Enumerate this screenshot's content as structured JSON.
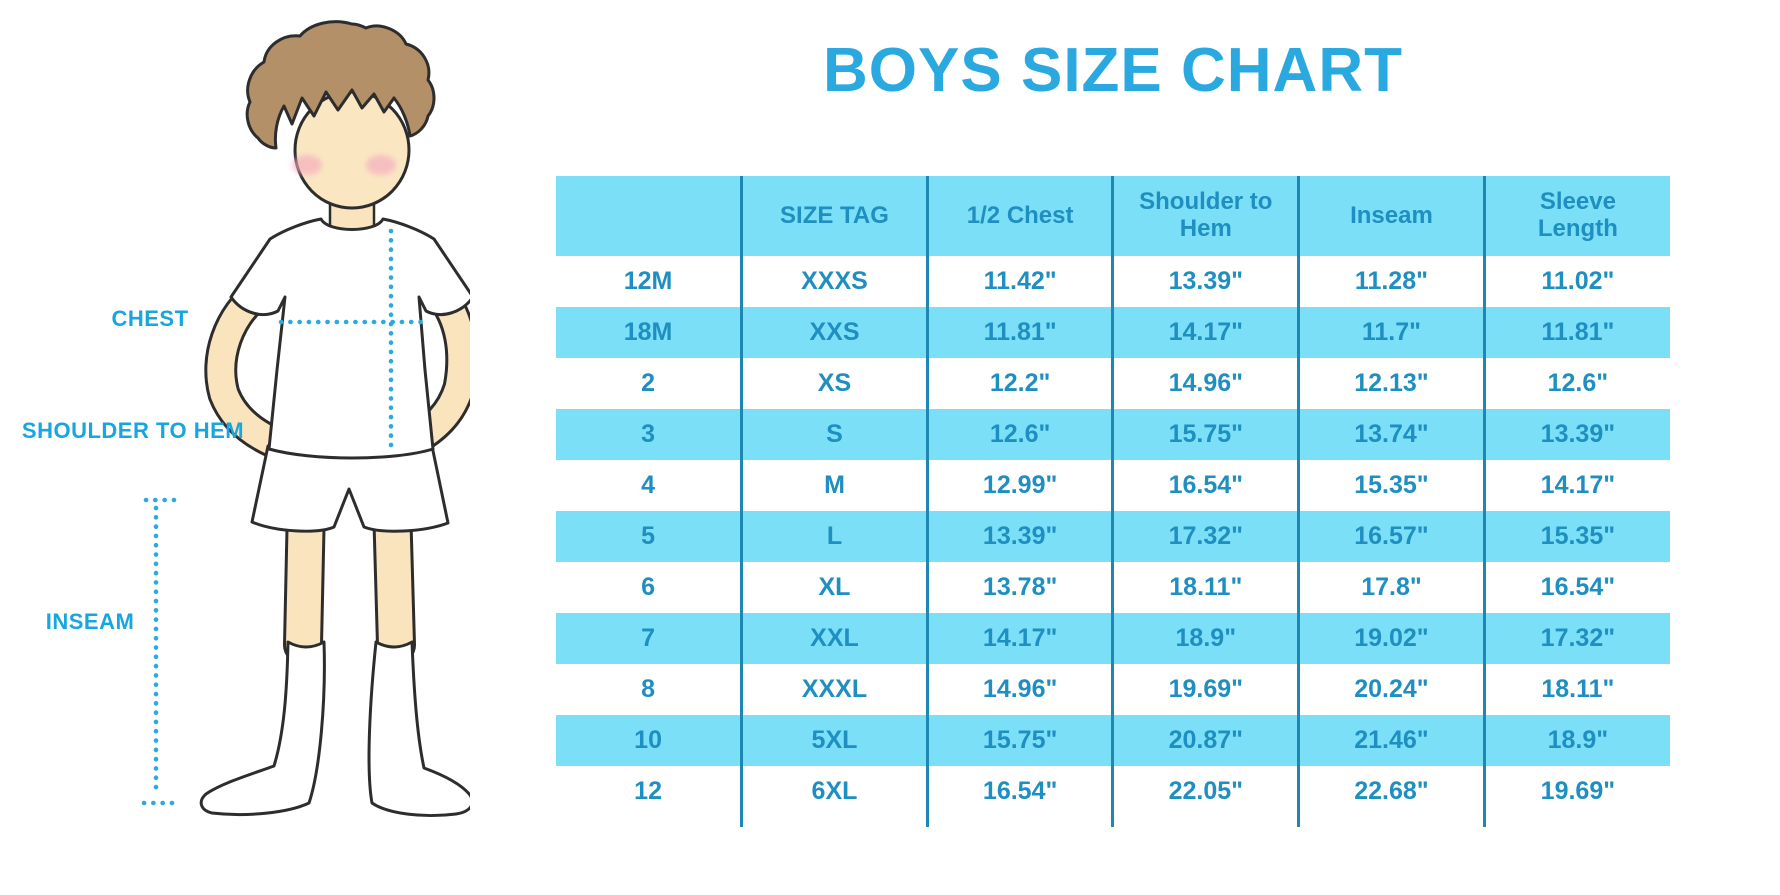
{
  "chart_data": {
    "type": "table",
    "title": "BOYS SIZE CHART",
    "columns": [
      "",
      "SIZE TAG",
      "1/2 Chest",
      "Shoulder to Hem",
      "Inseam",
      "Sleeve Length"
    ],
    "rows": [
      [
        "12M",
        "XXXS",
        "11.42\"",
        "13.39\"",
        "11.28\"",
        "11.02\""
      ],
      [
        "18M",
        "XXS",
        "11.81\"",
        "14.17\"",
        "11.7\"",
        "11.81\""
      ],
      [
        "2",
        "XS",
        "12.2\"",
        "14.96\"",
        "12.13\"",
        "12.6\""
      ],
      [
        "3",
        "S",
        "12.6\"",
        "15.75\"",
        "13.74\"",
        "13.39\""
      ],
      [
        "4",
        "M",
        "12.99\"",
        "16.54\"",
        "15.35\"",
        "14.17\""
      ],
      [
        "5",
        "L",
        "13.39\"",
        "17.32\"",
        "16.57\"",
        "15.35\""
      ],
      [
        "6",
        "XL",
        "13.78\"",
        "18.11\"",
        "17.8\"",
        "16.54\""
      ],
      [
        "7",
        "XXL",
        "14.17\"",
        "18.9\"",
        "19.02\"",
        "17.32\""
      ],
      [
        "8",
        "XXXL",
        "14.96\"",
        "19.69\"",
        "20.24\"",
        "18.11\""
      ],
      [
        "10",
        "5XL",
        "15.75\"",
        "20.87\"",
        "21.46\"",
        "18.9\""
      ],
      [
        "12",
        "6XL",
        "16.54\"",
        "22.05\"",
        "22.68\"",
        "19.69\""
      ]
    ],
    "row_stripe_pattern": "alternating white / light blue, header light blue"
  },
  "diagram": {
    "labels": {
      "chest": "CHEST",
      "shoulder_to_hem": "SHOULDER TO HEM",
      "inseam": "INSEAM"
    }
  },
  "colors": {
    "title_blue": "#2AA9E0",
    "stripe_blue": "#7BDFF8",
    "table_text_blue": "#1F8EC0",
    "separator_blue": "#1E87B4",
    "label_cyan": "#18A6E0",
    "dotted_line_cyan": "#29ABE2",
    "skin": "#F9E4BD",
    "hair_brown": "#B49069"
  }
}
